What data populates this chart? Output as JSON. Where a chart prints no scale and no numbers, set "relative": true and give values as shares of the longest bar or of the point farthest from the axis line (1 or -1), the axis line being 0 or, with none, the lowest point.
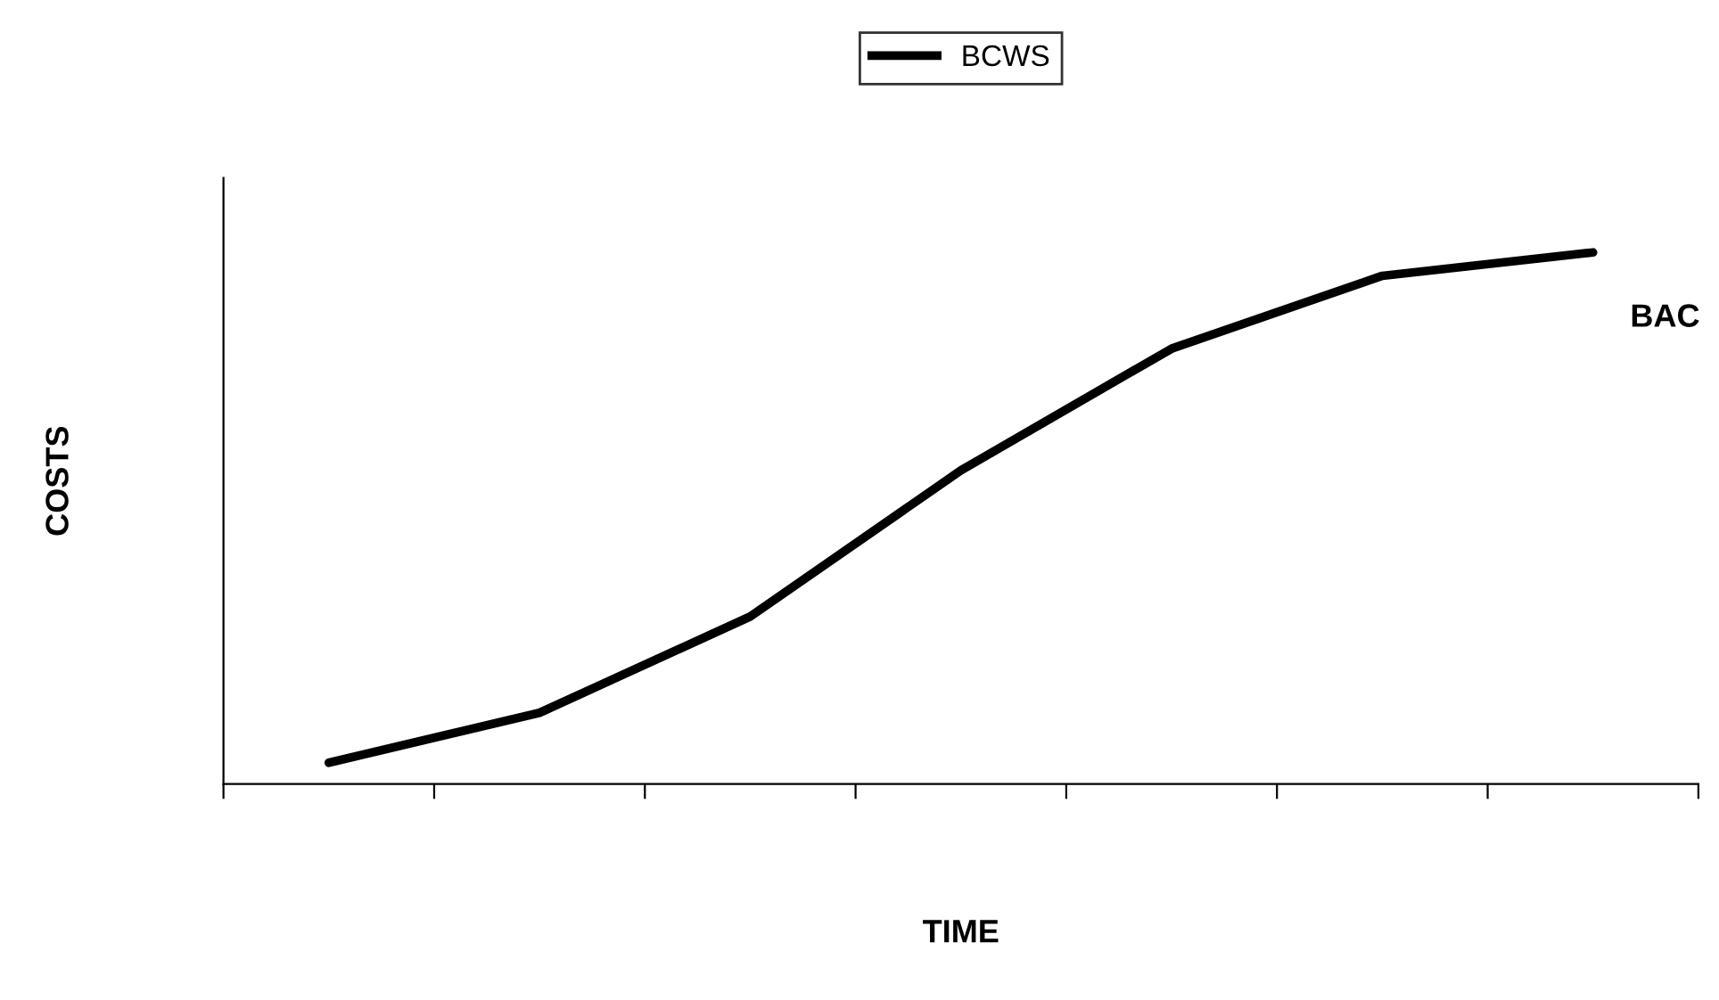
{
  "chart_data": {
    "type": "line",
    "relative": true,
    "xlabel": "TIME",
    "ylabel": "COSTS",
    "categories": [
      null,
      null,
      null,
      null,
      null,
      null,
      null
    ],
    "series": [
      {
        "name": "BCWS",
        "color": "#000000",
        "values": [
          0.04,
          0.134,
          0.315,
          0.59,
          0.819,
          0.956,
          1
        ]
      }
    ],
    "annotations": [
      "BAC"
    ],
    "legend": "top",
    "grid": false,
    "marker": "none",
    "line_style": "solid"
  }
}
